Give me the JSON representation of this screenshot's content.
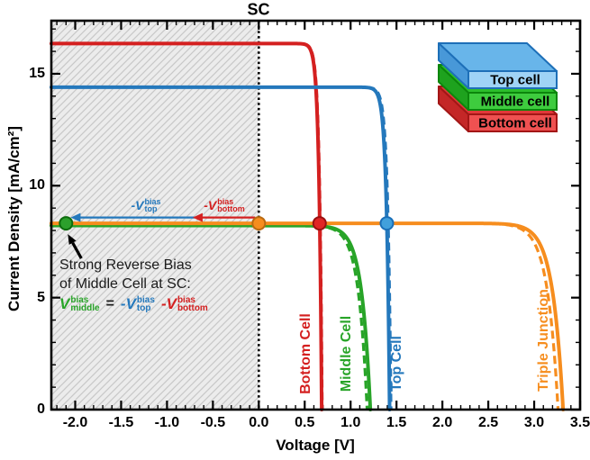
{
  "chart_data": {
    "type": "line",
    "title": "SC",
    "xlabel": "Voltage [V]",
    "ylabel": "Current Density [mA/cm²]",
    "xlim": [
      -2.26,
      3.5
    ],
    "ylim": [
      0,
      17.37
    ],
    "grid": false,
    "x_major_ticks": [
      -2.0,
      -1.5,
      -1.0,
      -0.5,
      0.0,
      0.5,
      1.0,
      1.5,
      2.0,
      2.5,
      3.0,
      3.5
    ],
    "x_tick_labels": [
      "-2.0",
      "-1.5",
      "-1.0",
      "-0.5",
      "0.0",
      "0.5",
      "1.0",
      "1.5",
      "2.0",
      "2.5",
      "3.0",
      "3.5"
    ],
    "x_minor_step": 0.1,
    "y_major_ticks": [
      0,
      5,
      10,
      15
    ],
    "y_tick_labels": [
      "0",
      "5",
      "10",
      "15"
    ],
    "y_minor_step": 1,
    "sc_line_x": 0.0,
    "reverse_bias_region": [
      -2.26,
      0.0
    ],
    "series": [
      {
        "name": "Bottom Cell",
        "color": "#d42020",
        "jsc_mA_cm2": 16.35,
        "voc_V": 0.685,
        "knee_V": 0.03,
        "dashed_voc_offset_V": 0.006
      },
      {
        "name": "Middle Cell",
        "color": "#28a428",
        "jsc_mA_cm2": 8.22,
        "voc_V": 1.215,
        "knee_V": 0.095,
        "dashed_voc_offset_V": -0.035
      },
      {
        "name": "Top Cell",
        "color": "#2478bc",
        "jsc_mA_cm2": 14.4,
        "voc_V": 1.425,
        "knee_V": 0.035,
        "dashed_voc_offset_V": 0.015
      },
      {
        "name": "Triple Junction",
        "color": "#f68d1e",
        "jsc_mA_cm2": 8.32,
        "voc_V": 3.315,
        "knee_V": 0.115,
        "dashed_voc_offset_V": -0.055
      }
    ],
    "points": [
      {
        "name": "middle-cell-reverse-bias-point",
        "x": -2.1,
        "y": 8.32,
        "fill": "#2ca02c",
        "stroke": "#0c6c0c"
      },
      {
        "name": "triple-junction-sc-point",
        "x": 0.0,
        "y": 8.32,
        "fill": "#f68d1e",
        "stroke": "#b96a10"
      },
      {
        "name": "bottom-cell-point",
        "x": 0.662,
        "y": 8.32,
        "fill": "#e02525",
        "stroke": "#9a1010"
      },
      {
        "name": "top-cell-point",
        "x": 1.395,
        "y": 8.32,
        "fill": "#41a0dc",
        "stroke": "#1a6fb8"
      }
    ],
    "bias_arrows": [
      {
        "name": "v-top-bias-arrow",
        "x_start": -0.7,
        "x_end": -2.05,
        "y": 8.58,
        "color": "#2478bc"
      },
      {
        "name": "v-bottom-bias-arrow",
        "x_start": -0.04,
        "x_end": -0.72,
        "y": 8.58,
        "color": "#d42020"
      }
    ]
  },
  "arrow_labels": {
    "top": {
      "symbol": "-V",
      "sup": "bias",
      "sub": "top",
      "color": "#2478bc"
    },
    "bottom": {
      "symbol": "-V",
      "sup": "bias",
      "sub": "bottom",
      "color": "#d42020"
    }
  },
  "annotation": {
    "line1": "Strong Reverse Bias",
    "line2": "of Middle Cell at SC:",
    "formula": {
      "lhs": {
        "symbol": "V",
        "sup": "bias",
        "sub": "middle",
        "color": "#28a428"
      },
      "equals": "=",
      "rhs1": {
        "symbol": "-V",
        "sup": "bias",
        "sub": "top",
        "color": "#2478bc"
      },
      "rhs2": {
        "symbol": "-V",
        "sup": "bias",
        "sub": "bottom",
        "color": "#d42020"
      }
    }
  },
  "legend": {
    "items": [
      {
        "label": "Top cell",
        "front": "#9fd3f6",
        "top": "#68b5ea",
        "side": "#4898d8",
        "stroke": "#1d6fb8"
      },
      {
        "label": "Middle cell",
        "front": "#3ecc3e",
        "top": "#2cbe2c",
        "side": "#1ea21e",
        "stroke": "#0c860c"
      },
      {
        "label": "Bottom cell",
        "front": "#ef5151",
        "top": "#e03939",
        "side": "#c42727",
        "stroke": "#a31616"
      }
    ]
  },
  "colors": {
    "axis": "#000000",
    "hatch_bg": "#ececec",
    "hatch_line": "#c8c8c8",
    "sc_line": "#000000"
  }
}
